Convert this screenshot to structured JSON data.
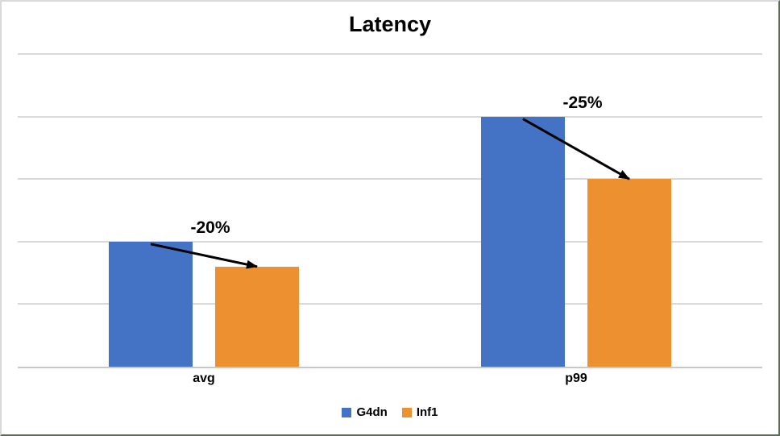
{
  "chart_data": {
    "type": "bar",
    "title": "Latency",
    "categories": [
      "avg",
      "p99"
    ],
    "series": [
      {
        "name": "G4dn",
        "color": "#4472C4",
        "values": [
          2.0,
          4.0
        ]
      },
      {
        "name": "Inf1",
        "color": "#ED9030",
        "values": [
          1.6,
          3.0
        ]
      }
    ],
    "annotations": [
      {
        "text": "-20%",
        "category": "avg"
      },
      {
        "text": "-25%",
        "category": "p99"
      }
    ],
    "xlabel": "",
    "ylabel": "",
    "ylim": [
      0,
      5
    ],
    "y_tick_labels_visible": false,
    "grid": true,
    "legend_position": "bottom"
  },
  "legend": {
    "items": [
      {
        "label": "G4dn",
        "color": "#4472C4"
      },
      {
        "label": "Inf1",
        "color": "#ED9030"
      }
    ]
  },
  "colors": {
    "g4dn_blue": "#4472C4",
    "inf1_orange": "#ED9030",
    "gridline": "#D9D9D9",
    "axis_line": "#C9C9C9",
    "arrow": "#000000",
    "background": "#FFFFFF",
    "frame_light": "#D9D9D9",
    "frame_dark": "#5E6C56"
  }
}
